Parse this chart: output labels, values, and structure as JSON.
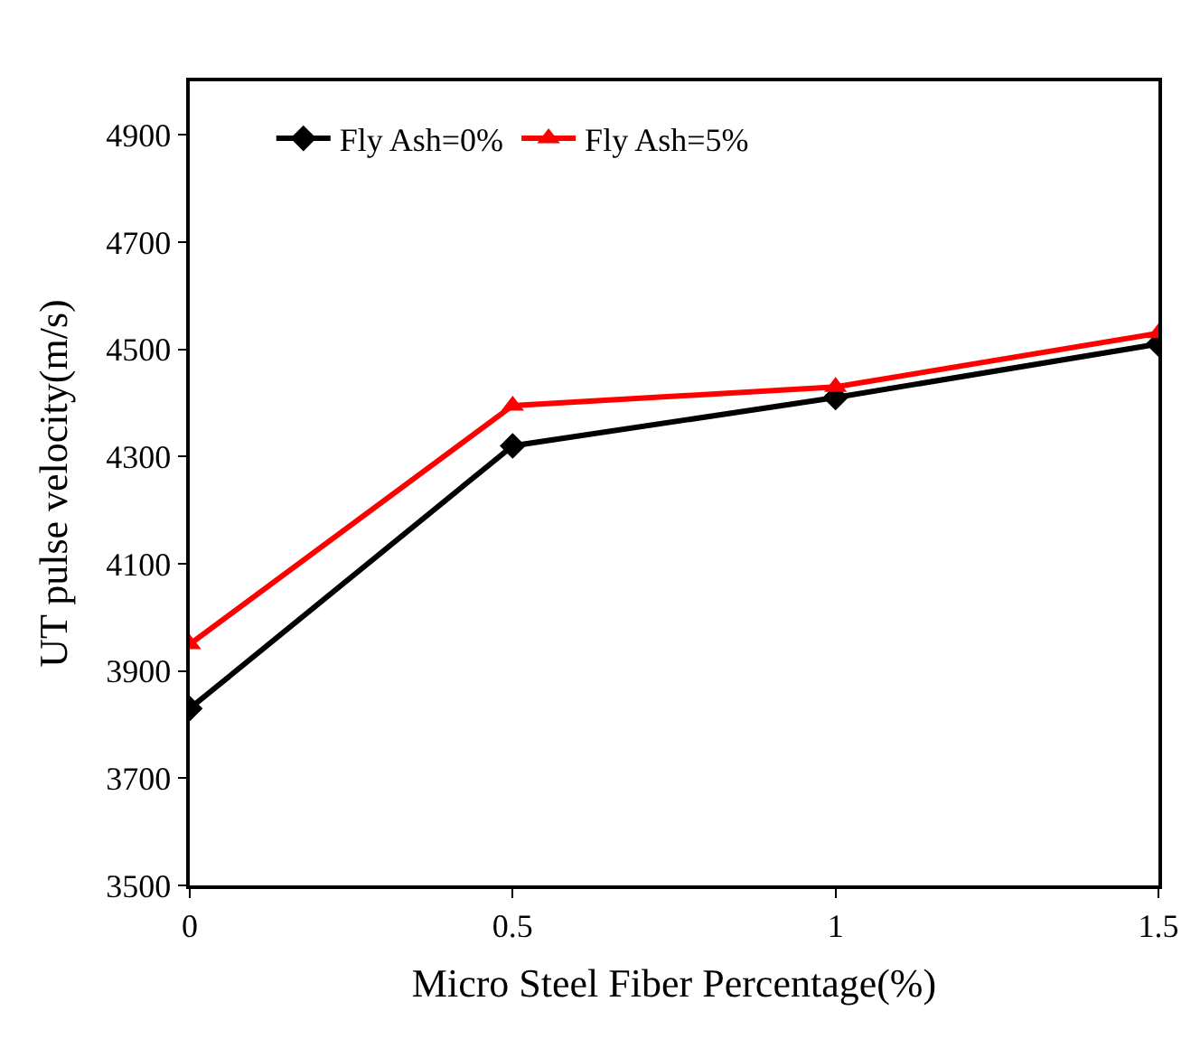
{
  "chart_data": {
    "type": "line",
    "xlabel": "Micro Steel Fiber Percentage(%)",
    "ylabel": "UT pulse velocity(m/s)",
    "x": [
      0,
      0.5,
      1,
      1.5
    ],
    "series": [
      {
        "name": "Fly Ash=0%",
        "color": "#000000",
        "values": [
          3830,
          4320,
          4410,
          4510
        ],
        "marker": "diamond"
      },
      {
        "name": "Fly Ash=5%",
        "color": "#ff0000",
        "values": [
          3950,
          4395,
          4430,
          4530
        ],
        "marker": "triangle"
      }
    ],
    "xlim": [
      0,
      1.5
    ],
    "xticks": [
      0,
      0.5,
      1,
      1.5
    ],
    "ylim": [
      3500,
      5000
    ],
    "yticks": [
      3500,
      3700,
      3900,
      4100,
      4300,
      4500,
      4700,
      4900
    ],
    "legend": "top left",
    "line_style": "solid"
  }
}
